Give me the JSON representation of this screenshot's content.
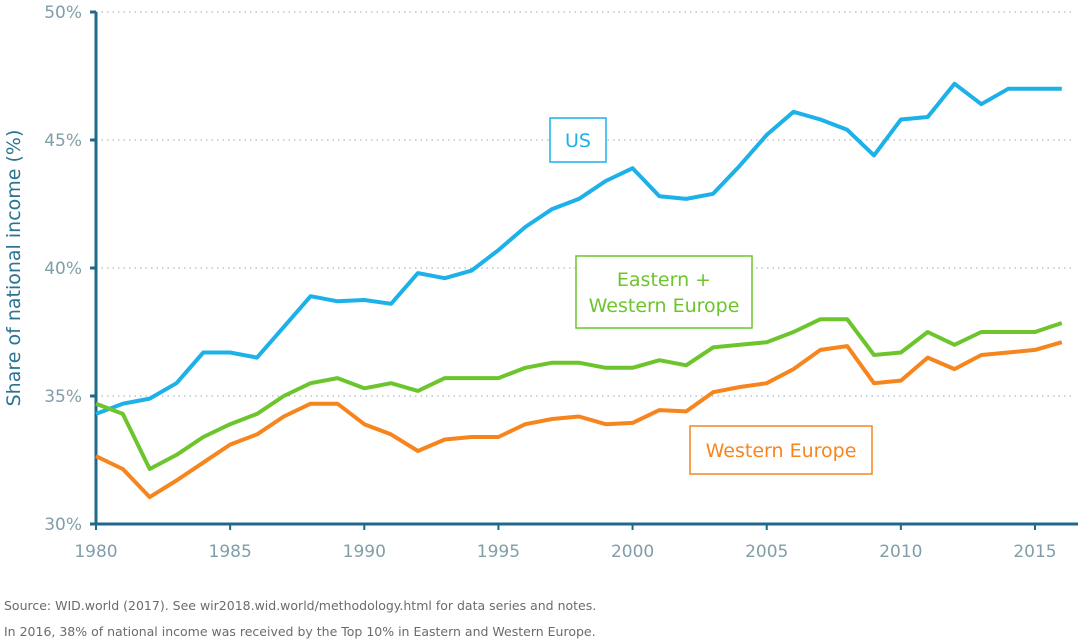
{
  "chart_data": {
    "type": "line",
    "title": "",
    "xlabel": "",
    "ylabel": "Share of national income (%)",
    "xlim": [
      1980,
      2016
    ],
    "ylim": [
      30,
      50
    ],
    "x_ticks": [
      "1980",
      "1985",
      "1990",
      "1995",
      "2000",
      "2005",
      "2010",
      "2015"
    ],
    "x_tick_values": [
      1980,
      1985,
      1990,
      1995,
      2000,
      2005,
      2010,
      2015
    ],
    "y_ticks": [
      "30%",
      "35%",
      "40%",
      "45%",
      "50%"
    ],
    "y_tick_values": [
      30,
      35,
      40,
      45,
      50
    ],
    "grid": "horizontal dotted",
    "x": [
      1980,
      1981,
      1982,
      1983,
      1984,
      1985,
      1986,
      1987,
      1988,
      1989,
      1990,
      1991,
      1992,
      1993,
      1994,
      1995,
      1996,
      1997,
      1998,
      1999,
      2000,
      2001,
      2002,
      2003,
      2004,
      2005,
      2006,
      2007,
      2008,
      2009,
      2010,
      2011,
      2012,
      2013,
      2014,
      2015,
      2016
    ],
    "series": [
      {
        "name": "US",
        "label_lines": [
          "US"
        ],
        "color": "#1cb1e8",
        "values": [
          34.3,
          34.7,
          34.9,
          35.5,
          36.7,
          36.7,
          36.5,
          37.7,
          38.9,
          38.7,
          38.75,
          38.6,
          39.8,
          39.6,
          39.9,
          40.7,
          41.6,
          42.3,
          42.7,
          43.4,
          43.9,
          42.8,
          42.7,
          42.9,
          44.0,
          45.2,
          46.1,
          45.8,
          45.4,
          44.4,
          45.8,
          45.9,
          47.2,
          46.4,
          47.0,
          47.0,
          47.0
        ]
      },
      {
        "name": "Eastern + Western Europe",
        "label_lines": [
          "Eastern +",
          "Western Europe"
        ],
        "color": "#6cc52c",
        "values": [
          34.7,
          34.3,
          32.15,
          32.7,
          33.4,
          33.9,
          34.3,
          35.0,
          35.5,
          35.7,
          35.3,
          35.5,
          35.2,
          35.7,
          35.7,
          35.7,
          36.1,
          36.3,
          36.3,
          36.1,
          36.1,
          36.4,
          36.2,
          36.9,
          37.0,
          37.1,
          37.5,
          38.0,
          38.0,
          36.6,
          36.7,
          37.5,
          37.0,
          37.5,
          37.5,
          37.5,
          37.85
        ]
      },
      {
        "name": "Western Europe",
        "label_lines": [
          "Western Europe"
        ],
        "color": "#f7851d",
        "values": [
          32.65,
          32.15,
          31.05,
          31.7,
          32.4,
          33.1,
          33.5,
          34.2,
          34.7,
          34.7,
          33.9,
          33.5,
          32.85,
          33.3,
          33.4,
          33.4,
          33.9,
          34.1,
          34.2,
          33.9,
          33.95,
          34.45,
          34.4,
          35.15,
          35.35,
          35.5,
          36.05,
          36.8,
          36.95,
          35.5,
          35.6,
          36.5,
          36.05,
          36.6,
          36.7,
          36.8,
          37.1
        ]
      }
    ]
  },
  "footer": {
    "source": "Source:  WID.world (2017). See wir2018.wid.world/methodology.html for data series and notes.",
    "note": "In 2016, 38% of national income was received by the Top 10% in Eastern and Western Europe."
  }
}
